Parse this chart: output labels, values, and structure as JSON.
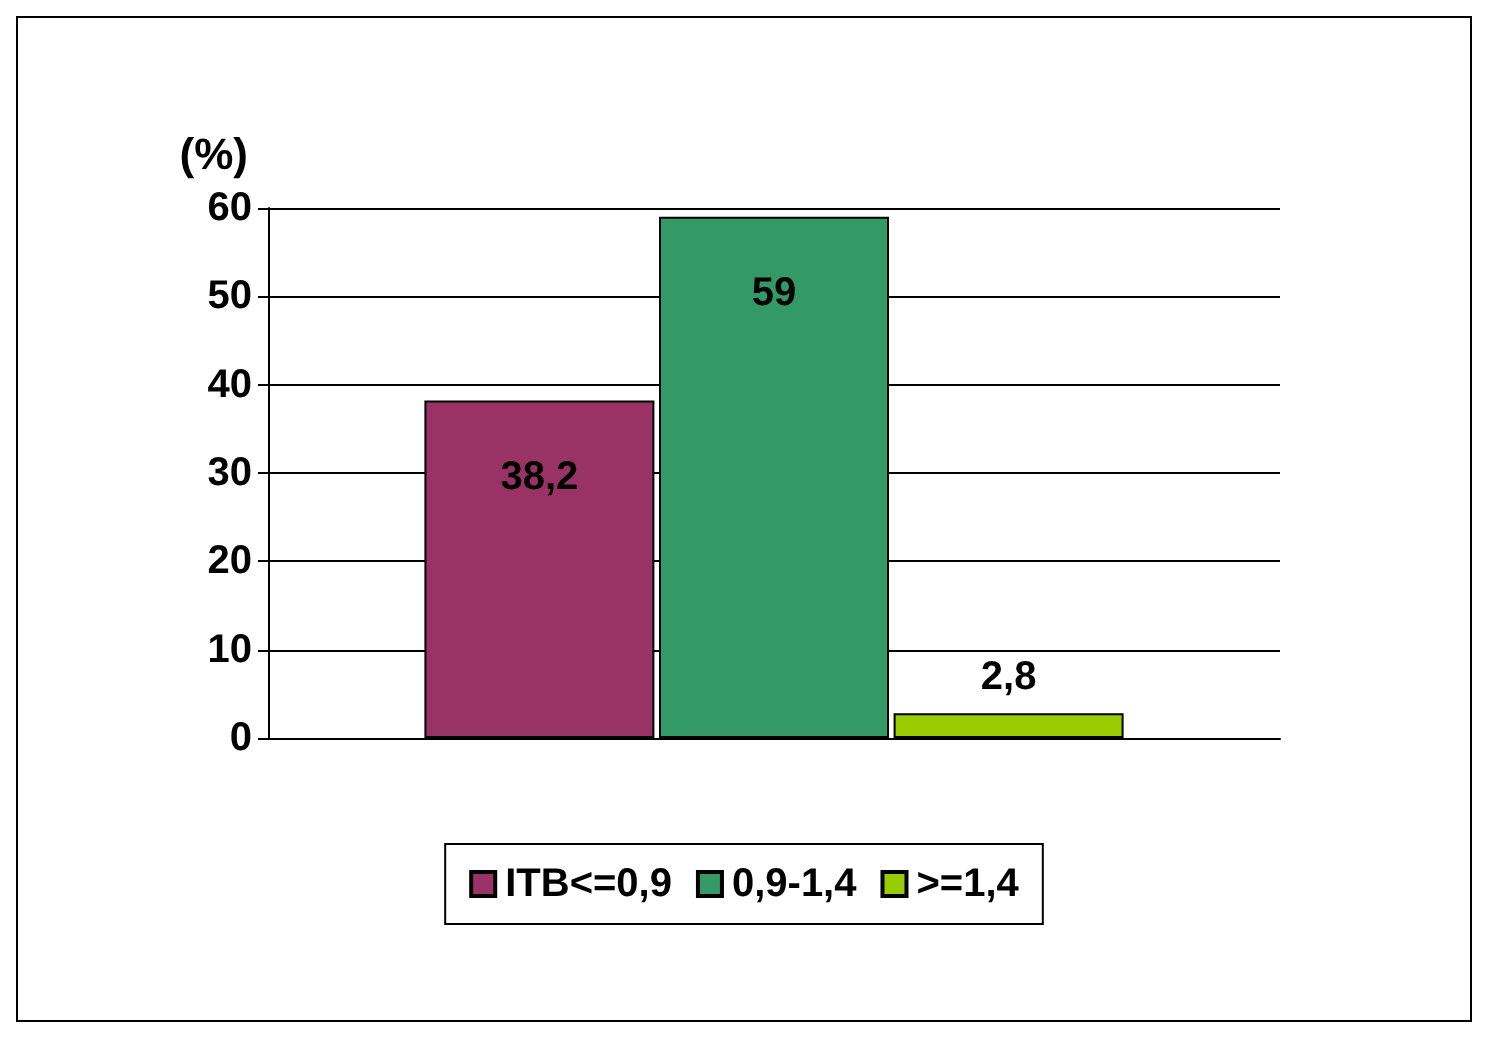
{
  "chart_data": {
    "type": "bar",
    "ylabel": "(%)",
    "categories": [
      null
    ],
    "series": [
      {
        "name": "ITB<=0,9",
        "color": "#993366",
        "values": [
          38.2
        ],
        "value_labels": [
          "38,2"
        ]
      },
      {
        "name": "0,9-1,4",
        "color": "#339966",
        "values": [
          59
        ],
        "value_labels": [
          "59"
        ]
      },
      {
        "name": ">=1,4",
        "color": "#99cc00",
        "values": [
          2.8
        ],
        "value_labels": [
          "2,8"
        ]
      }
    ],
    "ylim": [
      0,
      60
    ],
    "yticks": [
      0,
      10,
      20,
      30,
      40,
      50,
      60
    ],
    "grid": "y",
    "legend": "bottom"
  }
}
